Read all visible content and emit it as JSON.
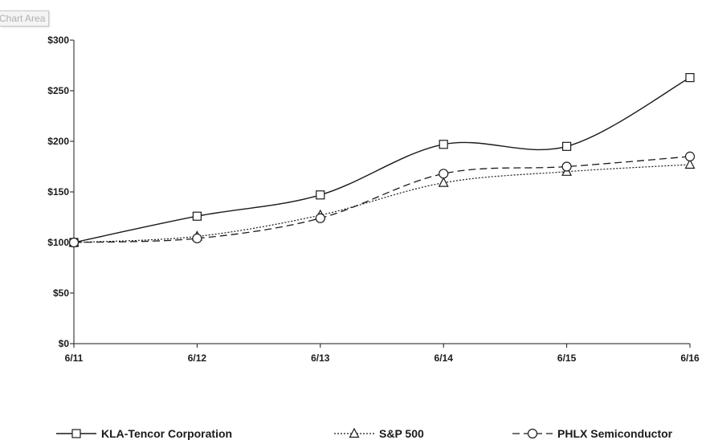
{
  "tooltip": {
    "label": "Chart Area"
  },
  "chart_data": {
    "type": "line",
    "categories": [
      "6/11",
      "6/12",
      "6/13",
      "6/14",
      "6/15",
      "6/16"
    ],
    "ylim": [
      0,
      300
    ],
    "ytick_labels": [
      "$0",
      "$50",
      "$100",
      "$150",
      "$200",
      "$250",
      "$300"
    ],
    "ytick_values": [
      0,
      50,
      100,
      150,
      200,
      250,
      300
    ],
    "grid": false,
    "legend_position": "bottom",
    "series": [
      {
        "name": "KLA-Tencor Corporation",
        "values": [
          100,
          126,
          147,
          197,
          195,
          263
        ],
        "marker": "square",
        "dash": "solid",
        "color": "#1a1a1a"
      },
      {
        "name": "S&P 500",
        "values": [
          100,
          106,
          127,
          159,
          170,
          177
        ],
        "marker": "triangle",
        "dash": "dotted",
        "color": "#1a1a1a"
      },
      {
        "name": "PHLX Semiconductor",
        "values": [
          100,
          104,
          124,
          168,
          175,
          185
        ],
        "marker": "circle",
        "dash": "dashed",
        "color": "#1a1a1a"
      }
    ]
  }
}
